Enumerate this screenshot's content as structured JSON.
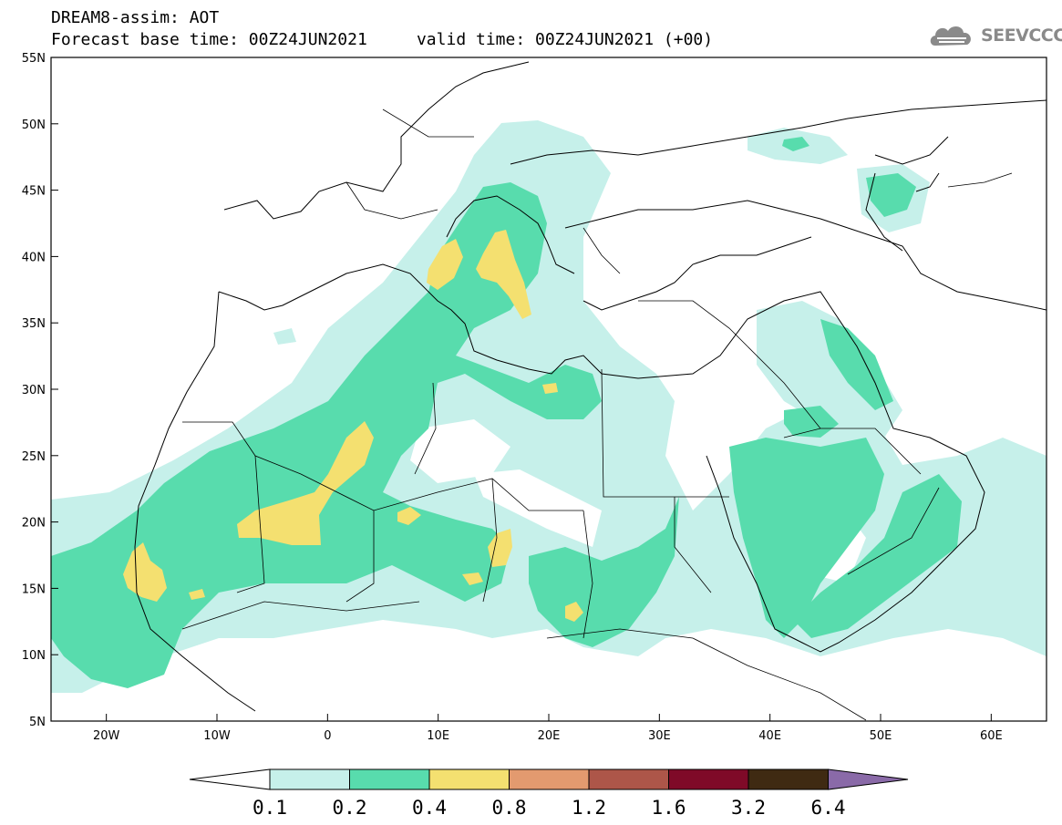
{
  "title": {
    "line1": "DREAM8-assim: AOT",
    "line2": "Forecast base time: 00Z24JUN2021     valid time: 00Z24JUN2021 (+00)"
  },
  "logo": {
    "text": "SEEVCCC",
    "icon": "cloud-icon"
  },
  "map": {
    "lon_range": [
      -25,
      65
    ],
    "lat_range": [
      5,
      55
    ],
    "lat_labels": [
      "55N",
      "50N",
      "45N",
      "40N",
      "35N",
      "30N",
      "25N",
      "20N",
      "15N",
      "10N",
      "5N"
    ],
    "lon_labels": [
      "20W",
      "10W",
      "0",
      "10E",
      "20E",
      "30E",
      "40E",
      "50E",
      "60E"
    ]
  },
  "colorbar": {
    "levels": [
      "0.1",
      "0.2",
      "0.4",
      "0.8",
      "1.2",
      "1.6",
      "3.2",
      "6.4"
    ],
    "colors": [
      "#ffffff",
      "#c6f0ea",
      "#58dcad",
      "#f4e070",
      "#e39a6f",
      "#ad5649",
      "#7f0a28",
      "#3f2a12",
      "#8a6aa8"
    ]
  },
  "colors": {
    "c1": "#c6f0ea",
    "c2": "#58dcad",
    "c3": "#f4e070",
    "coast": "#000000"
  }
}
